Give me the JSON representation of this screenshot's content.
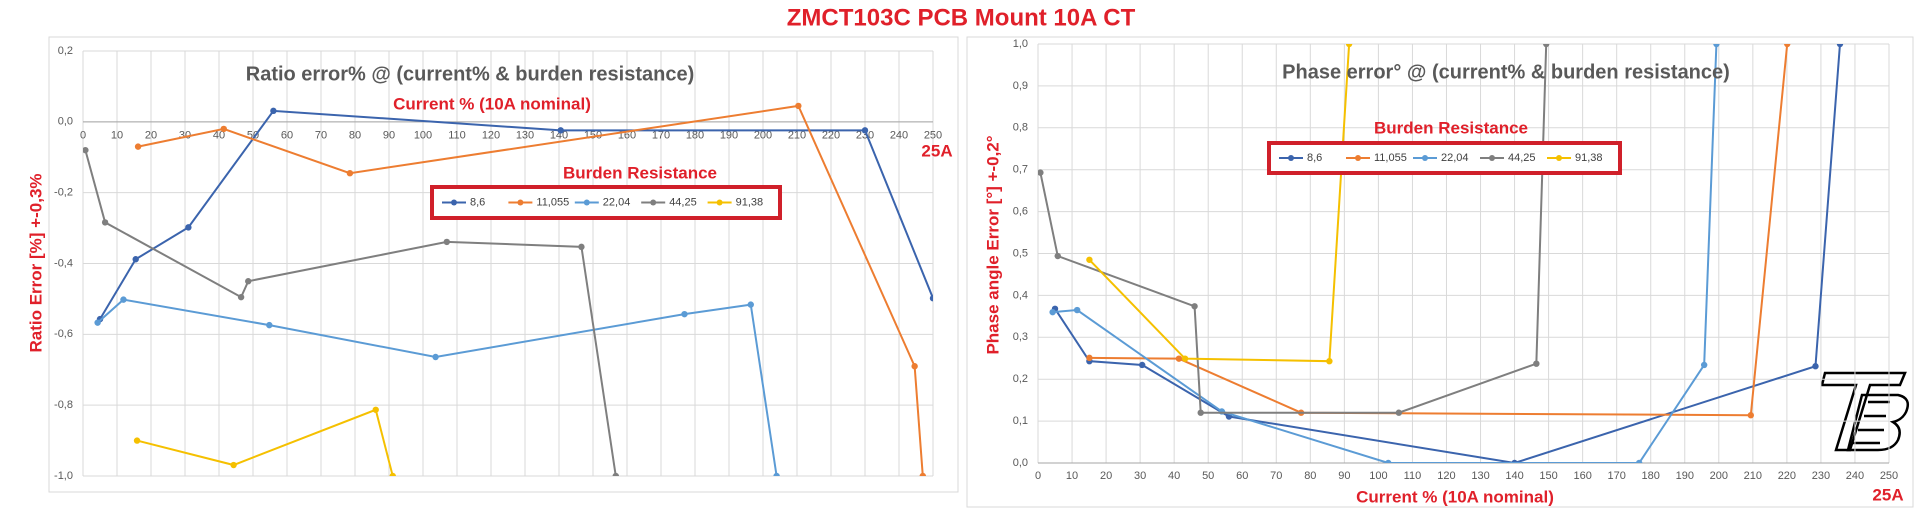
{
  "title": "ZMCT103C PCB Mount 10A CT",
  "chart_data": [
    {
      "type": "line",
      "title": "Ratio error% @ (current% & burden resistance)",
      "x_label": "Current %   (10A nominal)",
      "y_label": "Ratio Error [%]  +-0,3%",
      "annotation": "25A",
      "legend_title": "Burden Resistance",
      "grid": true,
      "xlim": [
        0,
        250
      ],
      "xticks": [
        0,
        10,
        20,
        30,
        40,
        50,
        60,
        70,
        80,
        90,
        100,
        110,
        120,
        130,
        140,
        150,
        160,
        170,
        180,
        190,
        200,
        210,
        220,
        230,
        240,
        250
      ],
      "ylim": [
        -1.0,
        0.2
      ],
      "yticks": [
        {
          "value": 0.2,
          "label": "0,2"
        },
        {
          "value": 0,
          "label": "0,0"
        },
        {
          "value": -0.2,
          "label": "-0,2"
        },
        {
          "value": -0.4,
          "label": "-0,4"
        },
        {
          "value": -0.6,
          "label": "-0,6"
        },
        {
          "value": -0.8,
          "label": "-0,8"
        },
        {
          "value": -1.0,
          "label": "-1,0"
        }
      ],
      "series": [
        {
          "name": "8,6",
          "color": "#3b64ad",
          "x": [
            5.0,
            15.5,
            31,
            56,
            140.5,
            230,
            250
          ],
          "values": [
            -0.557,
            -0.388,
            -0.298,
            0.031,
            -0.024,
            -0.024,
            -0.498
          ]
        },
        {
          "name": "11,055",
          "color": "#ed7d31",
          "x": [
            16.2,
            41.4,
            78.5,
            210.4,
            244.6,
            247
          ],
          "values": [
            -0.07,
            -0.02,
            -0.145,
            0.045,
            -0.69,
            -1.0
          ]
        },
        {
          "name": "22,04",
          "color": "#5b9bd5",
          "x": [
            4.3,
            11.9,
            54.8,
            103.7,
            176.9,
            196.4,
            204
          ],
          "values": [
            -0.567,
            -0.502,
            -0.574,
            -0.664,
            -0.543,
            -0.516,
            -1.0
          ]
        },
        {
          "name": "44,25",
          "color": "#7f7f7f",
          "x": [
            0.7,
            6.5,
            46.5,
            48.6,
            107,
            146.6,
            156.7
          ],
          "values": [
            -0.08,
            -0.284,
            -0.495,
            -0.45,
            -0.339,
            -0.353,
            -1.0
          ]
        },
        {
          "name": "91,38",
          "color": "#f5c000",
          "x": [
            15.9,
            44.3,
            86.1,
            91.1
          ],
          "values": [
            -0.9,
            -0.969,
            -0.813,
            -1.0
          ]
        }
      ]
    },
    {
      "type": "line",
      "title": "Phase error° @ (current% & burden resistance)",
      "x_label": "Current %  (10A nominal)",
      "y_label": "Phase angle Error [°]  +-0,2°",
      "annotation": "25A",
      "legend_title": "Burden Resistance",
      "grid": true,
      "xlim": [
        0,
        250
      ],
      "xticks": [
        0,
        10,
        20,
        30,
        40,
        50,
        60,
        70,
        80,
        90,
        100,
        110,
        120,
        130,
        140,
        150,
        160,
        170,
        180,
        190,
        200,
        210,
        220,
        230,
        240,
        250
      ],
      "ylim": [
        0,
        1.0
      ],
      "yticks": [
        {
          "value": 0,
          "label": "0,0"
        },
        {
          "value": 0.1,
          "label": "0,1"
        },
        {
          "value": 0.2,
          "label": "0,2"
        },
        {
          "value": 0.3,
          "label": "0,3"
        },
        {
          "value": 0.4,
          "label": "0,4"
        },
        {
          "value": 0.5,
          "label": "0,5"
        },
        {
          "value": 0.6,
          "label": "0,6"
        },
        {
          "value": 0.7,
          "label": "0,7"
        },
        {
          "value": 0.8,
          "label": "0,8"
        },
        {
          "value": 0.9,
          "label": "0,9"
        },
        {
          "value": 1.0,
          "label": "1,0"
        }
      ],
      "series": [
        {
          "name": "8,6",
          "color": "#3b64ad",
          "x": [
            5,
            15.1,
            30.6,
            56.1,
            140,
            228.4,
            235.6
          ],
          "values": [
            0.368,
            0.243,
            0.234,
            0.111,
            0,
            0.231,
            1.0
          ]
        },
        {
          "name": "11,055",
          "color": "#ed7d31",
          "x": [
            15.1,
            41.4,
            77.3,
            209.4,
            220.1
          ],
          "values": [
            0.251,
            0.249,
            0.12,
            0.114,
            1.0
          ]
        },
        {
          "name": "22,04",
          "color": "#5b9bd5",
          "x": [
            4.3,
            11.5,
            54,
            102.9,
            176.6,
            195.7,
            199.3
          ],
          "values": [
            0.36,
            0.365,
            0.123,
            0,
            0,
            0.234,
            1.0
          ]
        },
        {
          "name": "44,25",
          "color": "#7f7f7f",
          "x": [
            0.7,
            5.8,
            46,
            47.8,
            106,
            146.4,
            149.3
          ],
          "values": [
            0.693,
            0.494,
            0.374,
            0.12,
            0.12,
            0.237,
            1.0
          ]
        },
        {
          "name": "91,38",
          "color": "#f5c000",
          "x": [
            15.1,
            43.2,
            85.6,
            91.4
          ],
          "values": [
            0.485,
            0.249,
            0.243,
            1.0
          ]
        }
      ]
    }
  ]
}
